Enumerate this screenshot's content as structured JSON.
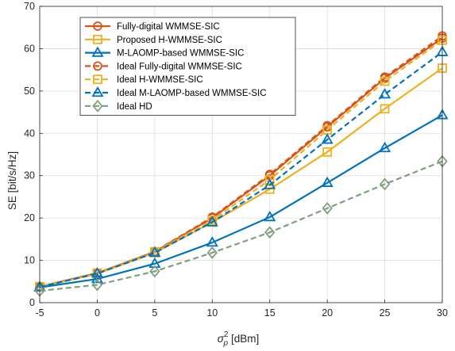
{
  "chart_data": {
    "type": "line",
    "x": [
      -5,
      0,
      5,
      10,
      15,
      20,
      25,
      30
    ],
    "xlabel": "σ_p² [dBm]",
    "xlabel_parts": {
      "base": "σ",
      "sup": "2",
      "sub": "p",
      "unit": "[dBm]"
    },
    "ylabel": "SE [bit/s/Hz]",
    "xlim": [
      -5,
      30
    ],
    "ylim": [
      0,
      70
    ],
    "xticks": [
      "-5",
      "0",
      "5",
      "10",
      "15",
      "20",
      "25",
      "30"
    ],
    "yticks": [
      "0",
      "10",
      "20",
      "30",
      "40",
      "50",
      "60",
      "70"
    ],
    "grid": true,
    "legend_position": "top-left",
    "series": [
      {
        "name": "Fully-digital WMMSE-SIC",
        "values": [
          3.8,
          7.0,
          12.0,
          20.0,
          30.0,
          41.5,
          53.0,
          62.5
        ],
        "color": "#D95319",
        "marker": "circle",
        "dash": false
      },
      {
        "name": "Proposed H-WMMSE-SIC",
        "values": [
          3.7,
          6.8,
          11.8,
          19.0,
          26.8,
          35.6,
          45.8,
          55.4
        ],
        "color": "#EDB120",
        "marker": "square",
        "dash": false
      },
      {
        "name": "M-LAOMP-based WMMSE-SIC",
        "values": [
          3.6,
          5.6,
          9.2,
          14.2,
          20.2,
          28.3,
          36.5,
          44.3
        ],
        "color": "#0072BD",
        "marker": "triangle",
        "dash": false
      },
      {
        "name": "Ideal Fully-digital WMMSE-SIC",
        "values": [
          3.8,
          7.0,
          12.1,
          20.2,
          30.3,
          41.8,
          53.3,
          63.0
        ],
        "color": "#D95319",
        "marker": "circle",
        "dash": true
      },
      {
        "name": "Ideal H-WMMSE-SIC",
        "values": [
          3.8,
          7.0,
          12.0,
          19.5,
          29.0,
          40.8,
          52.3,
          62.0
        ],
        "color": "#EDB120",
        "marker": "square",
        "dash": true
      },
      {
        "name": "Ideal M-LAOMP-based WMMSE-SIC",
        "values": [
          3.7,
          6.9,
          11.8,
          19.0,
          27.8,
          38.5,
          49.2,
          59.2
        ],
        "color": "#0072BD",
        "marker": "triangle",
        "dash": true
      },
      {
        "name": "Ideal HD",
        "values": [
          2.8,
          4.2,
          7.4,
          11.8,
          16.6,
          22.3,
          28.0,
          33.4
        ],
        "color": "#7F9F7F",
        "marker": "diamond",
        "dash": true
      }
    ]
  }
}
